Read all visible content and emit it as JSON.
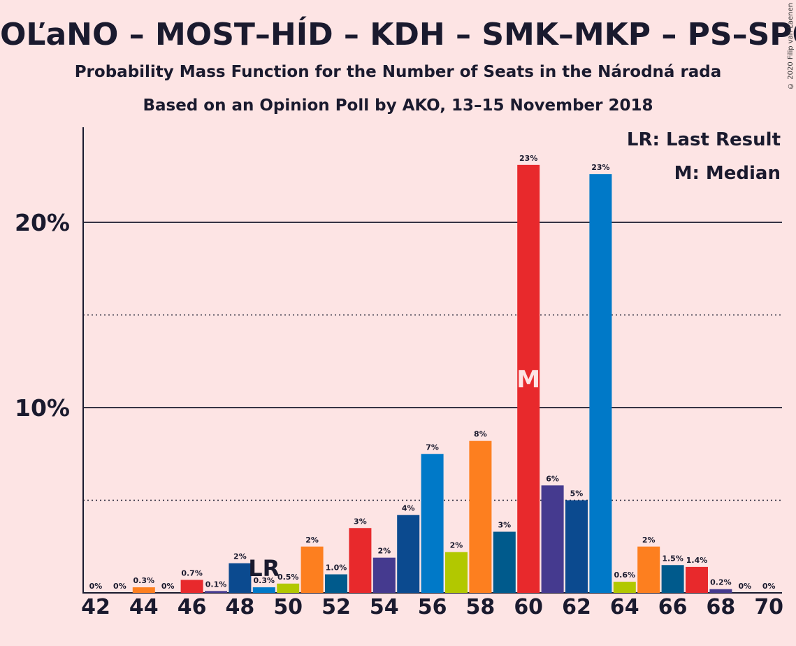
{
  "title": "OĽaNO – MOST–HÍD – KDH – SMK–MKP – PS–SPOLU",
  "subtitle1": "Probability Mass Function for the Number of Seats in the Národná rada",
  "subtitle2": "Based on an Opinion Poll by AKO, 13–15 November 2018",
  "copyright": "© 2020 Filip van Laenen",
  "legend": {
    "lr": "LR: Last Result",
    "m": "M: Median"
  },
  "markers": {
    "lr_label": "LR",
    "lr_seat": 49,
    "m_label": "M",
    "median_seat": 60
  },
  "colors": {
    "background": "#fde4e4",
    "red": "#e8292c",
    "blue": "#0079c8",
    "navy": "#0b4a8f",
    "purple": "#453a8f",
    "orange": "#fd7f1f",
    "lime": "#b2c800",
    "teal": "#005a8c"
  },
  "chart_data": {
    "type": "bar",
    "xlabel": "",
    "ylabel": "",
    "ylim": [
      0,
      25
    ],
    "xlim": [
      42,
      70
    ],
    "y_ticks": [
      {
        "value": 10,
        "label": "10%"
      },
      {
        "value": 20,
        "label": "20%"
      }
    ],
    "y_dotted": [
      5,
      15
    ],
    "x_ticks": [
      42,
      44,
      46,
      48,
      50,
      52,
      54,
      56,
      58,
      60,
      62,
      64,
      66,
      68,
      70
    ],
    "bars": [
      {
        "x": 42,
        "value": 0,
        "label": "0%",
        "color": "#fd7f1f"
      },
      {
        "x": 43,
        "value": 0,
        "label": "0%",
        "color": "#b2c800"
      },
      {
        "x": 44,
        "value": 0.3,
        "label": "0.3%",
        "color": "#fd7f1f"
      },
      {
        "x": 45,
        "value": 0,
        "label": "0%",
        "color": "#0079c8"
      },
      {
        "x": 46,
        "value": 0.7,
        "label": "0.7%",
        "color": "#e8292c"
      },
      {
        "x": 47,
        "value": 0.1,
        "label": "0.1%",
        "color": "#453a8f"
      },
      {
        "x": 48,
        "value": 1.6,
        "label": "2%",
        "color": "#0b4a8f"
      },
      {
        "x": 49,
        "value": 0.3,
        "label": "0.3%",
        "color": "#0079c8"
      },
      {
        "x": 50,
        "value": 0.5,
        "label": "0.5%",
        "color": "#b2c800"
      },
      {
        "x": 51,
        "value": 2.5,
        "label": "2%",
        "color": "#fd7f1f"
      },
      {
        "x": 52,
        "value": 1.0,
        "label": "1.0%",
        "color": "#005a8c"
      },
      {
        "x": 53,
        "value": 3.5,
        "label": "3%",
        "color": "#e8292c"
      },
      {
        "x": 54,
        "value": 1.9,
        "label": "2%",
        "color": "#453a8f"
      },
      {
        "x": 55,
        "value": 4.2,
        "label": "4%",
        "color": "#0b4a8f"
      },
      {
        "x": 56,
        "value": 7.5,
        "label": "7%",
        "color": "#0079c8"
      },
      {
        "x": 57,
        "value": 2.2,
        "label": "2%",
        "color": "#b2c800"
      },
      {
        "x": 58,
        "value": 8.2,
        "label": "8%",
        "color": "#fd7f1f"
      },
      {
        "x": 59,
        "value": 3.3,
        "label": "3%",
        "color": "#005a8c"
      },
      {
        "x": 60,
        "value": 23.1,
        "label": "23%",
        "color": "#e8292c"
      },
      {
        "x": 61,
        "value": 5.8,
        "label": "6%",
        "color": "#453a8f"
      },
      {
        "x": 62,
        "value": 5.0,
        "label": "5%",
        "color": "#0b4a8f"
      },
      {
        "x": 63,
        "value": 22.6,
        "label": "23%",
        "color": "#0079c8"
      },
      {
        "x": 64,
        "value": 0.6,
        "label": "0.6%",
        "color": "#b2c800"
      },
      {
        "x": 65,
        "value": 2.5,
        "label": "2%",
        "color": "#fd7f1f"
      },
      {
        "x": 66,
        "value": 1.5,
        "label": "1.5%",
        "color": "#005a8c"
      },
      {
        "x": 67,
        "value": 1.4,
        "label": "1.4%",
        "color": "#e8292c"
      },
      {
        "x": 68,
        "value": 0.2,
        "label": "0.2%",
        "color": "#453a8f"
      },
      {
        "x": 69,
        "value": 0,
        "label": "0%",
        "color": "#0b4a8f"
      },
      {
        "x": 70,
        "value": 0,
        "label": "0%",
        "color": "#0079c8"
      }
    ]
  }
}
